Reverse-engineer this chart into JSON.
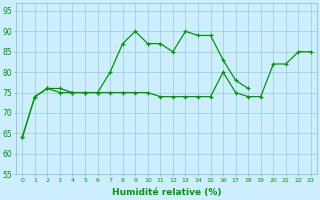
{
  "x": [
    0,
    1,
    2,
    3,
    4,
    5,
    6,
    7,
    8,
    9,
    10,
    11,
    12,
    13,
    14,
    15,
    16,
    17,
    18,
    19,
    20,
    21,
    22,
    23
  ],
  "line1_x": [
    0,
    1,
    2,
    3,
    4,
    5,
    6,
    7,
    8,
    9,
    10,
    11,
    12,
    13,
    14,
    15,
    16,
    17,
    18
  ],
  "line1_y": [
    64,
    74,
    76,
    76,
    75,
    75,
    75,
    80,
    87,
    90,
    87,
    87,
    85,
    90,
    89,
    89,
    83,
    78,
    76
  ],
  "line2_x": [
    0,
    1,
    2,
    3,
    4,
    5,
    6,
    7,
    8,
    9,
    10,
    11,
    12,
    13,
    14,
    15,
    16,
    17,
    18,
    19,
    20,
    21,
    22,
    23
  ],
  "line2_y": [
    64,
    74,
    76,
    75,
    75,
    75,
    75,
    75,
    75,
    75,
    75,
    74,
    74,
    74,
    74,
    74,
    80,
    75,
    74,
    74,
    82,
    82,
    85,
    85
  ],
  "ylim": [
    55,
    97
  ],
  "yticks": [
    55,
    60,
    65,
    70,
    75,
    80,
    85,
    90,
    95
  ],
  "xlabel": "Humidité relative (%)",
  "bg_color": "#cceeff",
  "grid_color": "#99cccc",
  "line_color": "#009900",
  "xlabel_color": "#009900"
}
